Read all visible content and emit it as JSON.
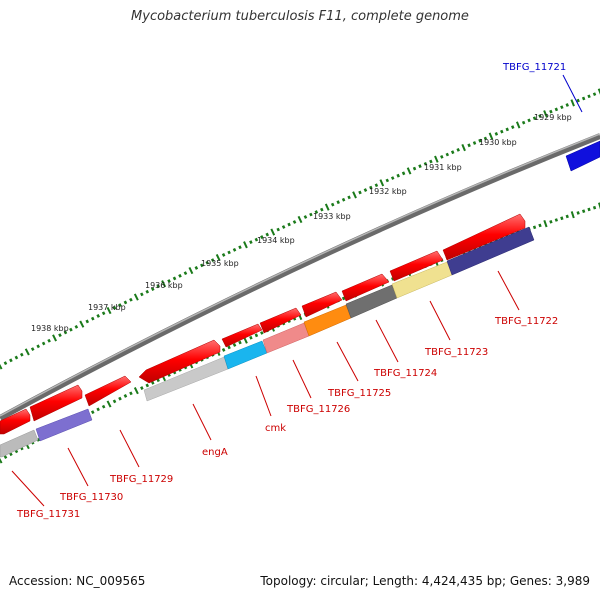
{
  "title": "Mycobacterium tuberculosis F11, complete genome",
  "footer": {
    "accession": "Accession: NC_009565",
    "summary": "Topology: circular; Length: 4,424,435 bp; Genes: 3,989"
  },
  "colors": {
    "forward_gene": "#ff1010",
    "reverse_blue": "#1010dd",
    "backbone": "#777777",
    "tick": "#1a7a1a",
    "label_red": "#cc0000",
    "label_blue": "#0000cc"
  },
  "kbp_labels": [
    "1929 kbp",
    "1930 kbp",
    "1931 kbp",
    "1932 kbp",
    "1933 kbp",
    "1934 kbp",
    "1935 kbp",
    "1936 kbp",
    "1937 kbp",
    "1938 kbp"
  ],
  "gene_labels": [
    {
      "text": "TBFG_11721",
      "color": "blue"
    },
    {
      "text": "TBFG_11722",
      "color": "red"
    },
    {
      "text": "TBFG_11723",
      "color": "red"
    },
    {
      "text": "TBFG_11724",
      "color": "red"
    },
    {
      "text": "TBFG_11725",
      "color": "red"
    },
    {
      "text": "TBFG_11726",
      "color": "red"
    },
    {
      "text": "cmk",
      "color": "red"
    },
    {
      "text": "engA",
      "color": "red"
    },
    {
      "text": "TBFG_11729",
      "color": "red"
    },
    {
      "text": "TBFG_11730",
      "color": "red"
    },
    {
      "text": "TBFG_11731",
      "color": "red"
    }
  ]
}
